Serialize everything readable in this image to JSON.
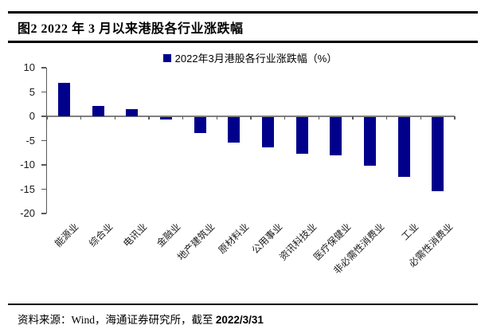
{
  "figure": {
    "title": "图2  2022 年 3 月以来港股各行业涨跌幅",
    "source_prefix": "资料来源：Wind，海通证券研究所，截至 ",
    "source_date": "2022/3/31"
  },
  "chart_data": {
    "type": "bar",
    "title": "",
    "legend": "2022年3月港股各行业涨跌幅（%）",
    "legend_position": "top-center",
    "bar_color": "#00008B",
    "axis_color": "#595959",
    "categories": [
      "能源业",
      "综合业",
      "电讯业",
      "金融业",
      "地产建筑业",
      "原材料业",
      "公用事业",
      "资讯科技业",
      "医疗保健业",
      "非必需性消费业",
      "工业",
      "必需性消费业"
    ],
    "values": [
      6.9,
      2.1,
      1.5,
      -0.5,
      -3.3,
      -5.2,
      -6.2,
      -7.5,
      -7.8,
      -10.0,
      -12.3,
      -15.3
    ],
    "xlabel": "",
    "ylabel": "",
    "ylim": [
      -20,
      10
    ],
    "yticks": [
      10,
      5,
      0,
      -5,
      -10,
      -15,
      -20
    ],
    "grid": false
  }
}
